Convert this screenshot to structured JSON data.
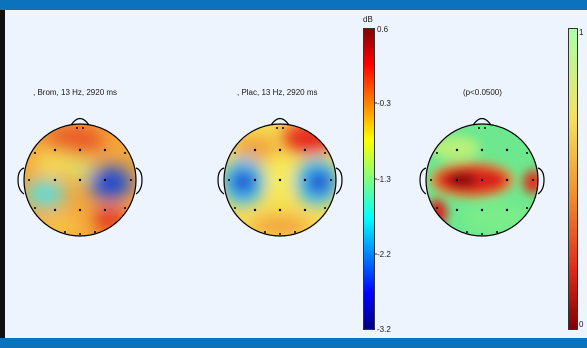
{
  "figure": {
    "panels": [
      {
        "title": ", Brom, 13 Hz, 2920 ms"
      },
      {
        "title": ", Plac, 13 Hz, 2920 ms"
      },
      {
        "title": "(p<0.0500)"
      }
    ],
    "colorbar_power": {
      "unit": "dB",
      "ticks": [
        "0.6",
        "-0.3",
        "-1.3",
        "-2.2",
        "-3.2"
      ]
    },
    "colorbar_stat": {
      "ticks": [
        "1",
        "0"
      ]
    }
  },
  "colors": {
    "background": "#eef4fd",
    "frame": "#0b72bb"
  }
}
